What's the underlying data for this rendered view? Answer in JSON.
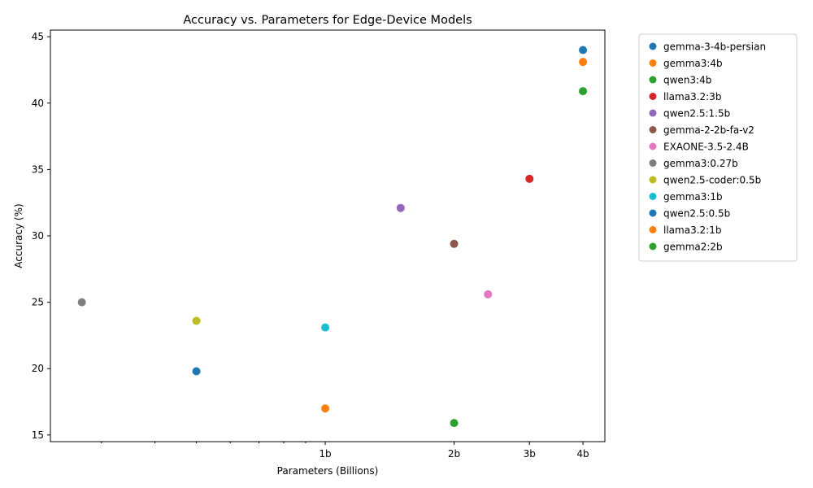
{
  "chart_data": {
    "type": "scatter",
    "title": "Accuracy vs. Parameters for Edge-Device Models",
    "xlabel": "Parameters (Billions)",
    "ylabel": "Accuracy (%)",
    "x_scale": "log",
    "xlim": [
      0.228,
      4.5
    ],
    "ylim": [
      14.5,
      45.5
    ],
    "x_ticks": [
      {
        "value": 1,
        "label": "1b"
      },
      {
        "value": 2,
        "label": "2b"
      },
      {
        "value": 3,
        "label": "3b"
      },
      {
        "value": 4,
        "label": "4b"
      }
    ],
    "y_ticks": [
      {
        "value": 15,
        "label": "15"
      },
      {
        "value": 20,
        "label": "20"
      },
      {
        "value": 25,
        "label": "25"
      },
      {
        "value": 30,
        "label": "30"
      },
      {
        "value": 35,
        "label": "35"
      },
      {
        "value": 40,
        "label": "40"
      },
      {
        "value": 45,
        "label": "45"
      }
    ],
    "grid": false,
    "legend_position": "outside-top-right",
    "series": [
      {
        "name": "gemma-3-4b-persian",
        "x": 4,
        "y": 44.0,
        "color": "#1f77b4"
      },
      {
        "name": "gemma3:4b",
        "x": 4,
        "y": 43.1,
        "color": "#ff7f0e"
      },
      {
        "name": "qwen3:4b",
        "x": 4,
        "y": 40.9,
        "color": "#2ca02c"
      },
      {
        "name": "llama3.2:3b",
        "x": 3,
        "y": 34.3,
        "color": "#d62728"
      },
      {
        "name": "qwen2.5:1.5b",
        "x": 1.5,
        "y": 32.1,
        "color": "#9467bd"
      },
      {
        "name": "gemma-2-2b-fa-v2",
        "x": 2,
        "y": 29.4,
        "color": "#8c564b"
      },
      {
        "name": "EXAONE-3.5-2.4B",
        "x": 2.4,
        "y": 25.6,
        "color": "#e377c2"
      },
      {
        "name": "gemma3:0.27b",
        "x": 0.27,
        "y": 25.0,
        "color": "#7f7f7f"
      },
      {
        "name": "qwen2.5-coder:0.5b",
        "x": 0.5,
        "y": 23.6,
        "color": "#bcbd22"
      },
      {
        "name": "gemma3:1b",
        "x": 1,
        "y": 23.1,
        "color": "#17becf"
      },
      {
        "name": "qwen2.5:0.5b",
        "x": 0.5,
        "y": 19.8,
        "color": "#1f77b4"
      },
      {
        "name": "llama3.2:1b",
        "x": 1,
        "y": 17.0,
        "color": "#ff7f0e"
      },
      {
        "name": "gemma2:2b",
        "x": 2,
        "y": 15.9,
        "color": "#2ca02c"
      }
    ]
  }
}
